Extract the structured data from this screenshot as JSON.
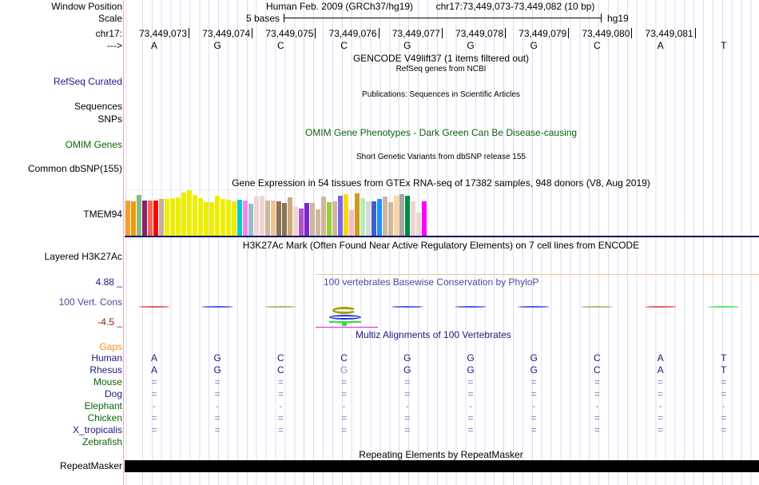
{
  "header": {
    "window_position_label": "Window Position",
    "assembly": "Human Feb. 2009 (GRCh37/hg19)",
    "position": "chr17:73,449,073-73,449,082 (10 bp)",
    "scale_label": "Scale",
    "scale_text": "5 bases",
    "scale_db": "hg19",
    "chrom_label": "chr17:",
    "strand_label": "--->"
  },
  "coords": [
    "73,449,073",
    "73,449,074",
    "73,449,075",
    "73,449,076",
    "73,449,077",
    "73,449,078",
    "73,449,079",
    "73,449,080",
    "73,449,081"
  ],
  "bases": [
    "A",
    "G",
    "C",
    "C",
    "G",
    "G",
    "G",
    "C",
    "A",
    "T"
  ],
  "tracks": {
    "gencode_title": "GENCODE V49lift37 (1 items filtered out)",
    "refseq_sub": "RefSeq genes from NCBI",
    "refseq_label": "RefSeq Curated",
    "pubs_title": "Publications: Sequences in Scientific Articles",
    "sequences_label": "Sequences",
    "snps_label": "SNPs",
    "omim_title": "OMIM Gene Phenotypes - Dark Green Can Be Disease-causing",
    "omim_label": "OMIM Genes",
    "dbsnp_title": "Short Genetic Variants from dbSNP release 155",
    "dbsnp_label": "Common dbSNP(155)",
    "gtex_title": "Gene Expression in 54 tissues from GTEx RNA-seq of 17382 samples, 948 donors (V8, Aug 2019)",
    "gtex_label": "TMEM94",
    "h3k27ac_title": "H3K27Ac Mark (Often Found Near Active Regulatory Elements) on 7 cell lines from ENCODE",
    "h3k27ac_label": "Layered H3K27Ac",
    "cons_title": "100 vertebrates Basewise Conservation by PhyloP",
    "cons_label": "100 Vert. Cons",
    "cons_max": "4.88 _",
    "cons_min": "-4.5 _",
    "multiz_title": "Multiz Alignments of 100 Vertebrates",
    "gaps_label": "Gaps",
    "rmsk_title": "Repeating Elements by RepeatMasker",
    "rmsk_label": "RepeatMasker"
  },
  "species": [
    {
      "name": "Human",
      "color": "#1a1a80",
      "row": [
        "A",
        "G",
        "C",
        "C",
        "G",
        "G",
        "G",
        "C",
        "A",
        "T"
      ]
    },
    {
      "name": "Rhesus",
      "color": "#1a1a80",
      "row": [
        "A",
        "G",
        "C",
        "G",
        "G",
        "G",
        "G",
        "C",
        "A",
        "T"
      ]
    },
    {
      "name": "Mouse",
      "color": "#0a640a",
      "row": [
        "=",
        "=",
        "=",
        "=",
        "=",
        "=",
        "=",
        "=",
        "=",
        "="
      ]
    },
    {
      "name": "Dog",
      "color": "#1a1a80",
      "row": [
        "=",
        "=",
        "=",
        "=",
        "=",
        "=",
        "=",
        "=",
        "=",
        "="
      ]
    },
    {
      "name": "Elephant",
      "color": "#0a640a",
      "row": [
        "-",
        "-",
        "-",
        "-",
        "-",
        "-",
        "-",
        "-",
        "-",
        "-"
      ]
    },
    {
      "name": "Chicken",
      "color": "#0a640a",
      "row": [
        "=",
        "=",
        "=",
        "=",
        "=",
        "=",
        "=",
        "=",
        "=",
        "="
      ]
    },
    {
      "name": "X_tropicalis",
      "color": "#1a1a80",
      "row": [
        "=",
        "=",
        "=",
        "=",
        "=",
        "=",
        "=",
        "=",
        "=",
        "="
      ]
    },
    {
      "name": "Zebrafish",
      "color": "#0a640a",
      "row": [
        "",
        "",
        "",
        "",
        "",
        "",
        "",
        "",
        "",
        ""
      ]
    }
  ],
  "gtex": {
    "values": [
      133,
      130,
      154,
      133,
      133,
      133,
      139,
      139,
      142,
      145,
      163,
      172,
      154,
      142,
      127,
      127,
      151,
      139,
      136,
      130,
      136,
      133,
      121,
      148,
      151,
      133,
      133,
      130,
      124,
      145,
      109,
      103,
      124,
      124,
      100,
      148,
      127,
      130,
      151,
      157,
      97,
      160,
      142,
      130,
      130,
      139,
      148,
      127,
      151,
      157,
      151,
      130,
      88,
      130
    ],
    "colors": [
      "#ff9933",
      "#ee9900",
      "#88bb88",
      "#882266",
      "#ee6655",
      "#ff0000",
      "#ccaa99",
      "#eeee00",
      "#eeee00",
      "#eeee00",
      "#eeee00",
      "#eeee00",
      "#eeee00",
      "#eeee00",
      "#eeee00",
      "#eeee00",
      "#eeee00",
      "#eeee00",
      "#eeee00",
      "#eeee00",
      "#00cccc",
      "#ee88ee",
      "#99bbcc",
      "#eed5d2",
      "#eed5d2",
      "#cdb79e",
      "#eec591",
      "#8b7355",
      "#8b7355",
      "#cdaa7d",
      "#eed5d2",
      "#b452cd",
      "#7d26cd",
      "#cdb79e",
      "#cdb79e",
      "#cdb79e",
      "#9acd32",
      "#cdb79e",
      "#7a67ee",
      "#ffd700",
      "#ffb6c1",
      "#cd9b1d",
      "#b4eeb4",
      "#d9d9d9",
      "#3a5fcd",
      "#1e90ff",
      "#cdb79e",
      "#cdb79e",
      "#ffd39b",
      "#a6a6a6",
      "#008b45",
      "#eed5d2",
      "#eed5d2",
      "#ff00ff"
    ]
  },
  "cons_colors": [
    "#e03030",
    "#2030e0",
    "#a0a040",
    "#a0a000",
    "#2030e0",
    "#2030e0",
    "#2030e0",
    "#a0a040",
    "#e03030",
    "#30e030"
  ]
}
